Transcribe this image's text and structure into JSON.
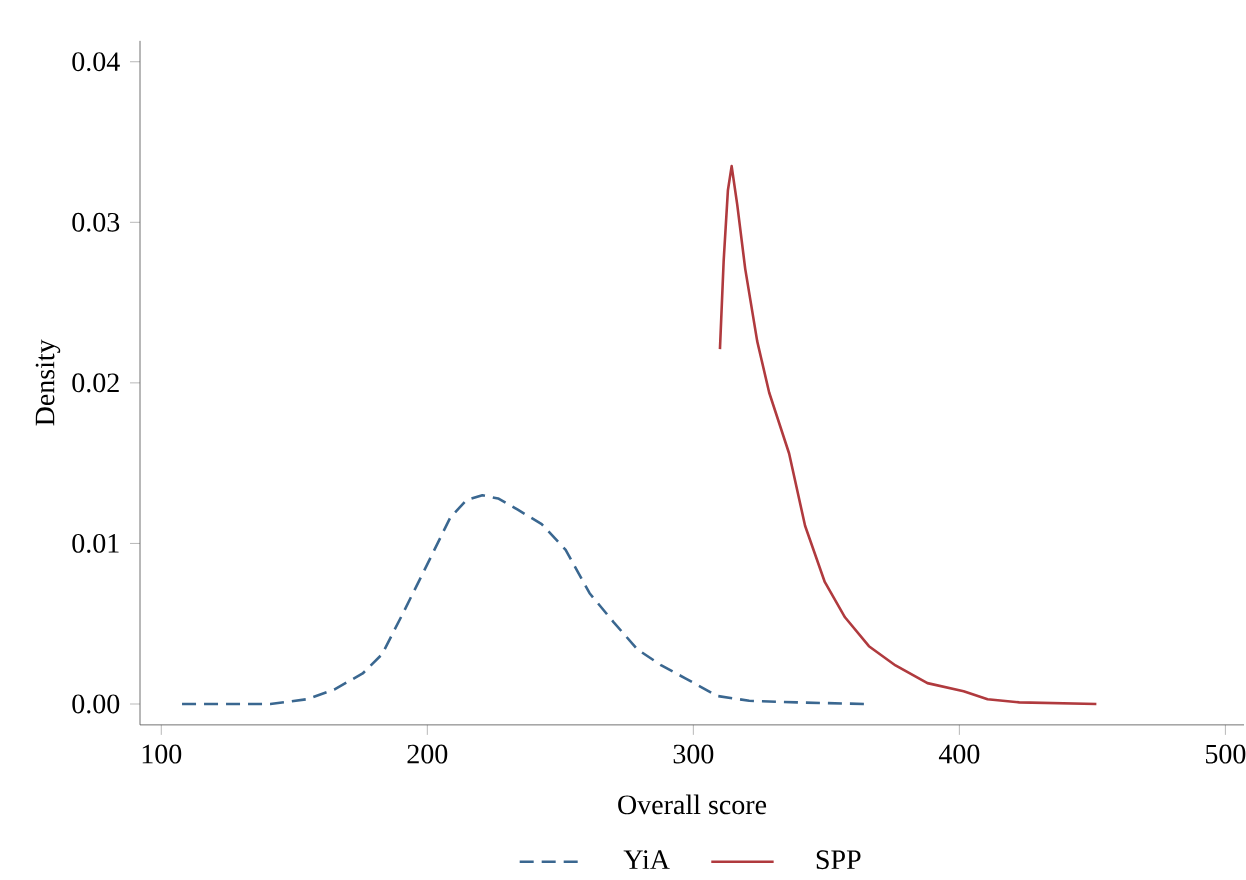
{
  "chart_data": {
    "type": "line",
    "xlabel": "Overall score",
    "ylabel": "Density",
    "xlim": [
      92,
      507
    ],
    "ylim": [
      -0.0013,
      0.0413
    ],
    "xticks": [
      100,
      200,
      300,
      400,
      500
    ],
    "yticks": [
      {
        "value": 0,
        "label": "0.00"
      },
      {
        "value": 0.01,
        "label": "0.01"
      },
      {
        "value": 0.02,
        "label": "0.02"
      },
      {
        "value": 0.03,
        "label": "0.03"
      },
      {
        "value": 0.04,
        "label": "0.04"
      }
    ],
    "legend": "bottom",
    "grid": false,
    "series": [
      {
        "name": "YiA",
        "color": "#3a6790",
        "line_style": "dashed",
        "x": [
          107.8,
          141,
          154.8,
          165,
          175.7,
          183,
          190.7,
          199.7,
          208.6,
          214.7,
          220.7,
          226.6,
          234,
          243,
          252,
          261,
          270,
          279,
          288,
          297,
          309,
          321,
          339,
          365
        ],
        "values": [
          0,
          0,
          0.0003,
          0.0009,
          0.0019,
          0.0031,
          0.0056,
          0.0086,
          0.0116,
          0.0127,
          0.013,
          0.0128,
          0.0121,
          0.0112,
          0.0096,
          0.0069,
          0.0051,
          0.0034,
          0.0024,
          0.0016,
          0.0005,
          0.0002,
          0.0001,
          0
        ]
      },
      {
        "name": "SPP",
        "color": "#b03a3e",
        "line_style": "solid",
        "x": [
          310,
          311.4,
          313,
          314.4,
          316.5,
          319.5,
          324,
          328.5,
          336,
          342,
          349.4,
          357,
          366,
          376,
          388,
          401.6,
          410.6,
          422.5,
          451.5
        ],
        "values": [
          0.0221,
          0.0276,
          0.032,
          0.0335,
          0.0311,
          0.0271,
          0.0226,
          0.0194,
          0.0156,
          0.0111,
          0.0076,
          0.0054,
          0.0036,
          0.0024,
          0.0013,
          0.0008,
          0.0003,
          0.0001,
          0
        ]
      }
    ]
  }
}
